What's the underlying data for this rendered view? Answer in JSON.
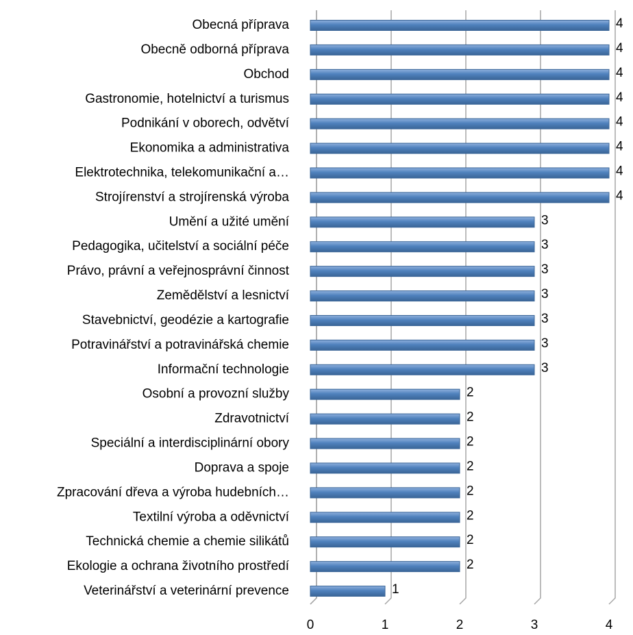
{
  "chart_data": {
    "type": "bar",
    "orientation": "horizontal",
    "categories": [
      "Obecná příprava",
      "Obecně odborná příprava",
      "Obchod",
      "Gastronomie, hotelnictví a turismus",
      "Podnikání v oborech, odvětví",
      "Ekonomika a administrativa",
      "Elektrotechnika, telekomunikační a…",
      "Strojírenství a strojírenská výroba",
      "Umění a užité umění",
      "Pedagogika, učitelství a sociální péče",
      "Právo, právní a veřejnosprávní činnost",
      "Zemědělství a lesnictví",
      "Stavebnictví, geodézie a kartografie",
      "Potravinářství a potravinářská chemie",
      "Informační technologie",
      "Osobní a provozní služby",
      "Zdravotnictví",
      "Speciální a interdisciplinární obory",
      "Doprava a spoje",
      "Zpracování dřeva a výroba hudebních…",
      "Textilní výroba a oděvnictví",
      "Technická chemie a chemie silikátů",
      "Ekologie a ochrana životního prostředí",
      "Veterinářství a veterinární prevence"
    ],
    "values": [
      4,
      4,
      4,
      4,
      4,
      4,
      4,
      4,
      3,
      3,
      3,
      3,
      3,
      3,
      3,
      2,
      2,
      2,
      2,
      2,
      2,
      2,
      2,
      1
    ],
    "color": "#4f81bd",
    "xlim": [
      0,
      4
    ],
    "xticks": [
      0,
      1,
      2,
      3,
      4
    ],
    "grid": true
  }
}
